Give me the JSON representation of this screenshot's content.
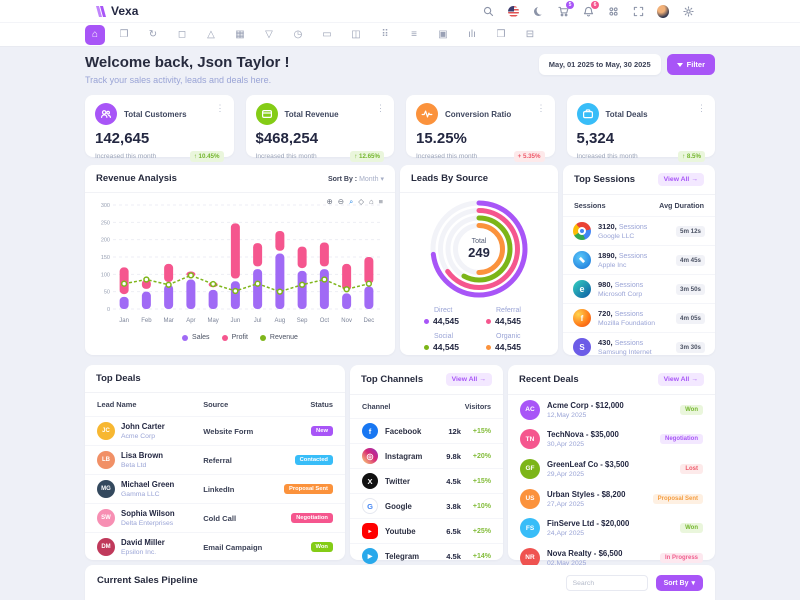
{
  "brand": {
    "name": "Vexa"
  },
  "header": {
    "cart_badge": "5",
    "bell_badge": "6",
    "icons": [
      "search-icon",
      "us-flag-icon",
      "dark-mode-moon-icon",
      "cart-icon",
      "notifications-bell-icon",
      "apps-grid-icon",
      "fullscreen-icon",
      "user-avatar",
      "settings-gear-icon"
    ]
  },
  "nav": {
    "items": [
      {
        "icon": "home-icon",
        "glyph": "⌂",
        "active": true
      },
      {
        "icon": "pages-icon",
        "glyph": "❐",
        "active": false
      },
      {
        "icon": "refresh-icon",
        "glyph": "↻",
        "active": false
      },
      {
        "icon": "shopping-bag-icon",
        "glyph": "◻",
        "active": false
      },
      {
        "icon": "shapes-icon",
        "glyph": "△",
        "active": false
      },
      {
        "icon": "calendar-icon",
        "glyph": "▦",
        "active": false
      },
      {
        "icon": "funnel-icon",
        "glyph": "▽",
        "active": false
      },
      {
        "icon": "history-clock-icon",
        "glyph": "◷",
        "active": false
      },
      {
        "icon": "credit-card-icon",
        "glyph": "▭",
        "active": false
      },
      {
        "icon": "briefcase-icon",
        "glyph": "◫",
        "active": false
      },
      {
        "icon": "apps-icon",
        "glyph": "⠿",
        "active": false
      },
      {
        "icon": "layers-icon",
        "glyph": "≡",
        "active": false
      },
      {
        "icon": "widgets-icon",
        "glyph": "▣",
        "active": false
      },
      {
        "icon": "analytics-bars-icon",
        "glyph": "ılı",
        "active": false
      },
      {
        "icon": "docs-icon",
        "glyph": "❒",
        "active": false
      },
      {
        "icon": "archive-icon",
        "glyph": "⊟",
        "active": false
      }
    ]
  },
  "welcome": {
    "title": "Welcome back, Json Taylor !",
    "subtitle": "Track your sales activity, leads and deals here."
  },
  "date_filter": {
    "range": "May, 01 2025 to May, 30 2025",
    "filter_label": "Filter"
  },
  "ui": {
    "kebab": "⋮",
    "caret": "▾",
    "view_all": "View All →"
  },
  "stats": [
    {
      "icon": "users-icon",
      "color": "#a855f7",
      "title": "Total Customers",
      "value": "142,645",
      "note": "Increased this month",
      "badge": "↑ 10.45%",
      "badge_type": "up"
    },
    {
      "icon": "revenue-card-icon",
      "color": "#84cc16",
      "title": "Total Revenue",
      "value": "$468,254",
      "note": "Increased this month",
      "badge": "↑ 12.65%",
      "badge_type": "up"
    },
    {
      "icon": "conversion-pulse-icon",
      "color": "#fb923c",
      "title": "Conversion Ratio",
      "value": "15.25%",
      "note": "Increased this month",
      "badge": "+ 5.35%",
      "badge_type": "down"
    },
    {
      "icon": "deals-briefcase-icon",
      "color": "#38bdf8",
      "title": "Total Deals",
      "value": "5,324",
      "note": "Increased this month",
      "badge": "↑ 8.5%",
      "badge_type": "up"
    }
  ],
  "revenue_card": {
    "title": "Revenue Analysis",
    "sort_label": "Sort By :",
    "sort_value": "Month",
    "toolbar": [
      {
        "name": "zoom-in-icon",
        "glyph": "⊕",
        "selected": false
      },
      {
        "name": "zoom-out-icon",
        "glyph": "⊖",
        "selected": false
      },
      {
        "name": "selection-zoom-icon",
        "glyph": "⌕",
        "selected": true
      },
      {
        "name": "pan-icon",
        "glyph": "◇",
        "selected": false
      },
      {
        "name": "reset-home-icon",
        "glyph": "⌂",
        "selected": false
      },
      {
        "name": "chart-menu-icon",
        "glyph": "≡",
        "selected": false
      }
    ]
  },
  "chart_data": [
    {
      "type": "bar",
      "title": "Revenue Analysis",
      "categories": [
        "Jan",
        "Feb",
        "Mar",
        "Apr",
        "May",
        "Jun",
        "Jul",
        "Aug",
        "Sep",
        "Oct",
        "Nov",
        "Dec"
      ],
      "series": [
        {
          "name": "Sales",
          "type": "bar",
          "color": "#a06af5",
          "values": [
            35,
            50,
            70,
            85,
            55,
            80,
            115,
            160,
            110,
            115,
            45,
            65
          ]
        },
        {
          "name": "Profit",
          "type": "bar",
          "color": "#f5568e",
          "values": [
            85,
            35,
            60,
            23,
            23,
            167,
            75,
            65,
            70,
            77,
            85,
            85
          ]
        },
        {
          "name": "Revenue",
          "type": "line",
          "color": "#7fb61b",
          "values": [
            73,
            85,
            70,
            97,
            72,
            52,
            73,
            50,
            70,
            85,
            57,
            73
          ]
        }
      ],
      "stacked": true,
      "ylim": [
        0,
        300
      ],
      "yticks": [
        0,
        50,
        100,
        150,
        200,
        250,
        300
      ],
      "grid": true,
      "legend_position": "bottom"
    },
    {
      "type": "radial",
      "title": "Leads By Source",
      "center_label": "Total",
      "center_value": "249",
      "series": [
        {
          "name": "Direct",
          "value": "44,545",
          "pct": 73,
          "color": "#a855f7"
        },
        {
          "name": "Referral",
          "value": "44,545",
          "pct": 65,
          "color": "#f5568e"
        },
        {
          "name": "Social",
          "value": "44,545",
          "pct": 58,
          "color": "#7cb518"
        },
        {
          "name": "Organic",
          "value": "44,545",
          "pct": 50,
          "color": "#fb923c"
        }
      ]
    }
  ],
  "leads_card": {
    "title": "Leads By Source"
  },
  "top_sessions": {
    "title": "Top Sessions",
    "view_all": "View All →",
    "col1": "Sessions",
    "col2": "Avg Duration",
    "rows": [
      {
        "browser": "chrome",
        "value": "3120,",
        "label": "Sessions",
        "company": "Google LLC",
        "duration": "5m 12s"
      },
      {
        "browser": "safari",
        "value": "1890,",
        "label": "Sessions",
        "company": "Apple Inc",
        "duration": "4m 45s"
      },
      {
        "browser": "edge",
        "value": "980,",
        "label": "Sessions",
        "company": "Microsoft Corp",
        "duration": "3m 50s",
        "glyph": "e"
      },
      {
        "browser": "firefox",
        "value": "720,",
        "label": "Sessions",
        "company": "Mozilla Foundation",
        "duration": "4m 05s",
        "glyph": "f"
      },
      {
        "browser": "samsung",
        "value": "430,",
        "label": "Sessions",
        "company": "Samsung Internet",
        "duration": "3m 30s",
        "glyph": "S"
      }
    ]
  },
  "top_deals": {
    "title": "Top Deals",
    "headers": {
      "col1": "Lead Name",
      "col2": "Source",
      "col3": "Status"
    },
    "rows": [
      {
        "initials": "JC",
        "avatar_color": "#f7b731",
        "name": "John Carter",
        "company": "Acme Corp",
        "source": "Website Form",
        "status": "New"
      },
      {
        "initials": "LB",
        "avatar_color": "#f19066",
        "name": "Lisa Brown",
        "company": "Beta Ltd",
        "source": "Referral",
        "status": "Contacted"
      },
      {
        "initials": "MG",
        "avatar_color": "#34495e",
        "name": "Michael Green",
        "company": "Gamma LLC",
        "source": "LinkedIn",
        "status": "Proposal Sent"
      },
      {
        "initials": "SW",
        "avatar_color": "#f78fb3",
        "name": "Sophia Wilson",
        "company": "Delta Enterprises",
        "source": "Cold Call",
        "status": "Negotiation"
      },
      {
        "initials": "DM",
        "avatar_color": "#c0395b",
        "name": "David Miller",
        "company": "Epsilon Inc.",
        "source": "Email Campaign",
        "status": "Won"
      }
    ]
  },
  "top_channels": {
    "title": "Top Channels",
    "view_all": "View All →",
    "col1": "Channel",
    "col2": "Visitors",
    "rows": [
      {
        "channel": "Facebook",
        "glyph": "f",
        "visitors": "12k",
        "change": "+15%"
      },
      {
        "channel": "Instagram",
        "glyph": "◎",
        "visitors": "9.8k",
        "change": "+20%"
      },
      {
        "channel": "Twitter",
        "glyph": "X",
        "visitors": "4.5k",
        "change": "+15%"
      },
      {
        "channel": "Google",
        "glyph": "G",
        "visitors": "3.8k",
        "change": "+10%"
      },
      {
        "channel": "Youtube",
        "glyph": "▸",
        "visitors": "6.5k",
        "change": "+25%"
      },
      {
        "channel": "Telegram",
        "glyph": "▶",
        "visitors": "4.5k",
        "change": "+14%"
      }
    ]
  },
  "recent_deals": {
    "title": "Recent Deals",
    "view_all": "View All →",
    "rows": [
      {
        "initials": "AC",
        "avatar_color": "#a855f7",
        "title": "Acme Corp - $12,000",
        "date": "12,May 2025",
        "status": "Won"
      },
      {
        "initials": "TN",
        "avatar_color": "#f5568e",
        "title": "TechNova - $35,000",
        "date": "30,Apr 2025",
        "status": "Negotiation"
      },
      {
        "initials": "GF",
        "avatar_color": "#7cb518",
        "title": "GreenLeaf Co - $3,500",
        "date": "29,Apr 2025",
        "status": "Lost"
      },
      {
        "initials": "US",
        "avatar_color": "#fb923c",
        "title": "Urban Styles - $8,200",
        "date": "27,Apr 2025",
        "status": "Proposal Sent"
      },
      {
        "initials": "FS",
        "avatar_color": "#38bdf8",
        "title": "FinServe Ltd - $20,000",
        "date": "24,Apr 2025",
        "status": "Won"
      },
      {
        "initials": "NR",
        "avatar_color": "#ef5350",
        "title": "Nova Realty - $6,500",
        "date": "02,May 2025",
        "status": "In Progress"
      }
    ]
  },
  "pipeline": {
    "title": "Current Sales Pipeline",
    "search_placeholder": "Search",
    "sort_label": "Sort By"
  }
}
